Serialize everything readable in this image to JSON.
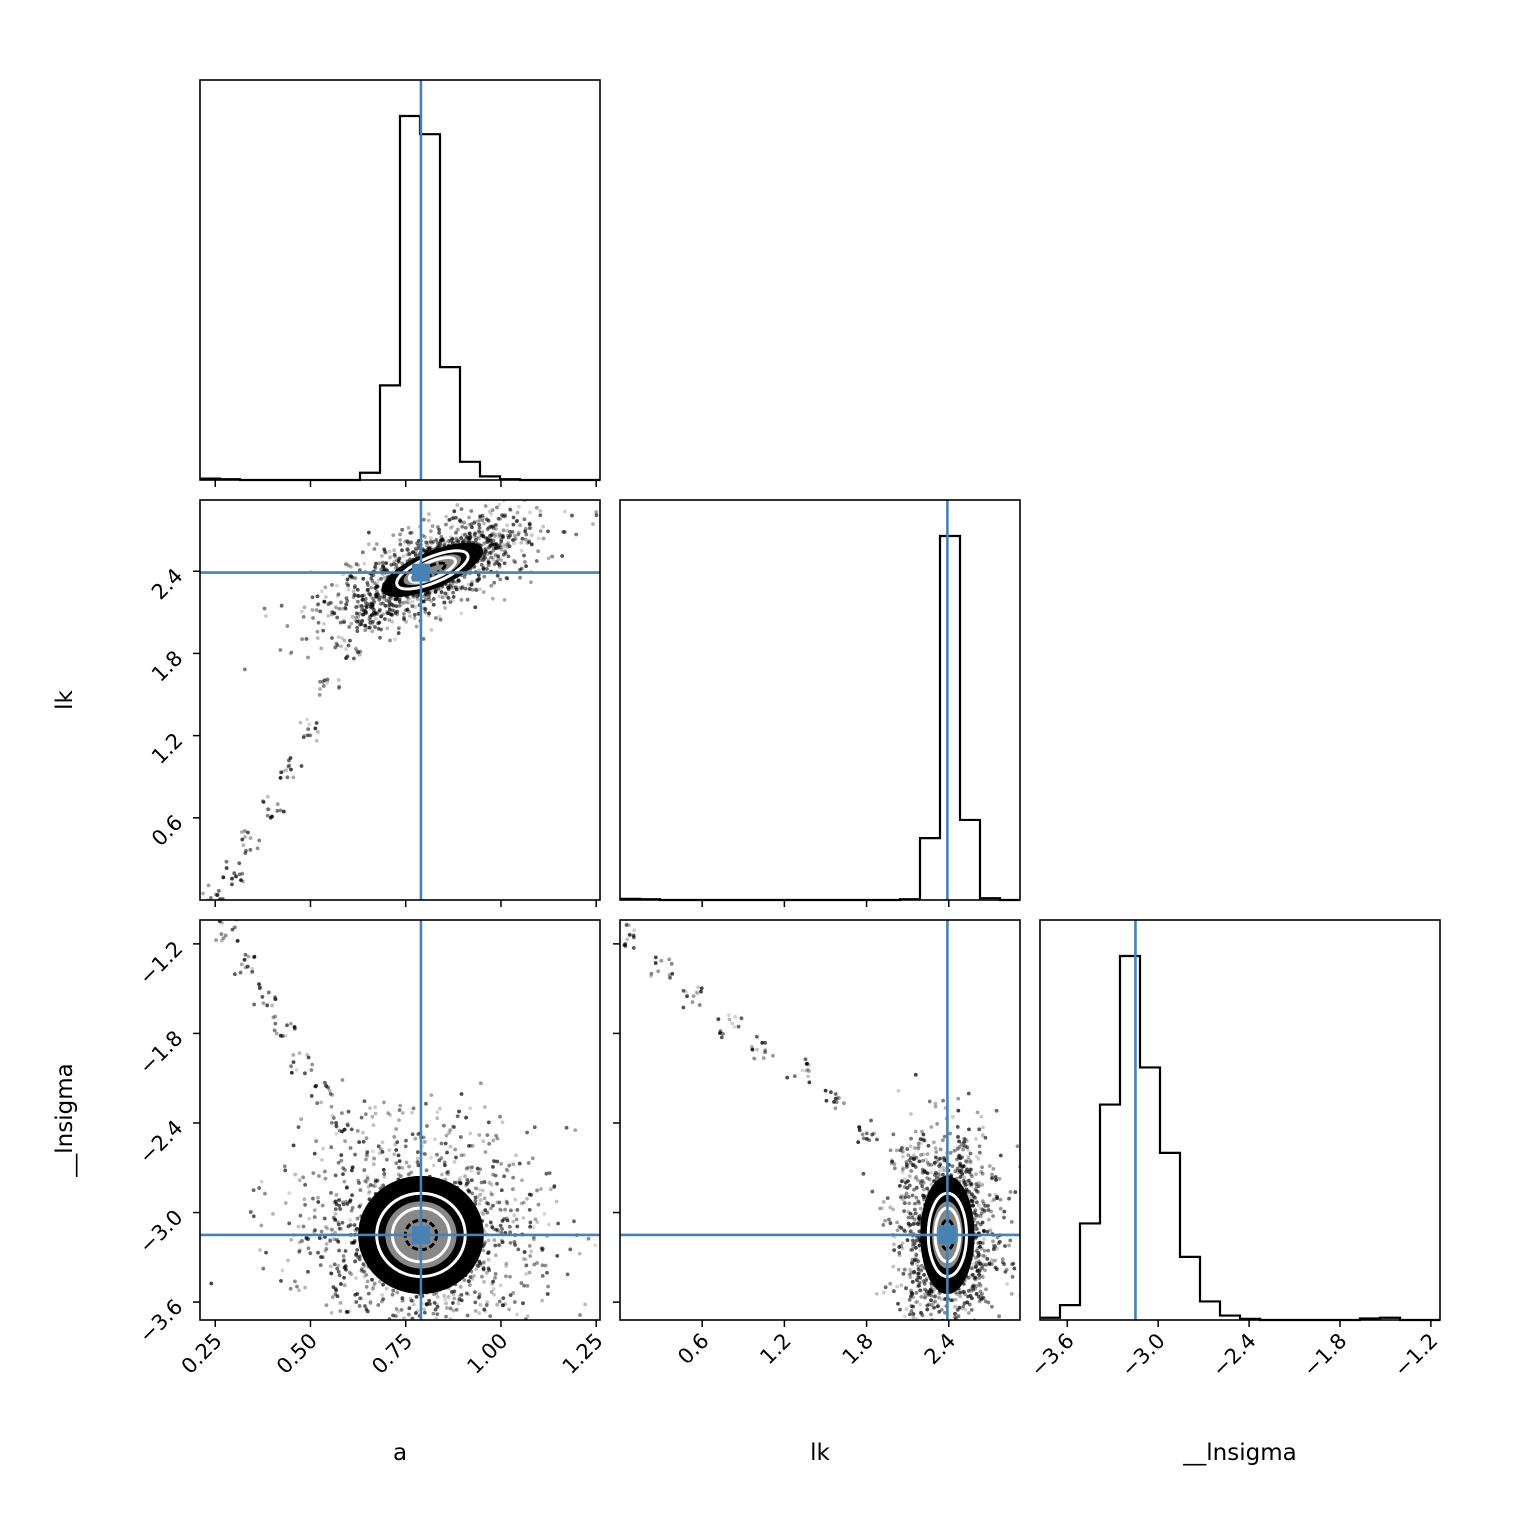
{
  "chart_data": {
    "type": "corner",
    "parameters": [
      "a",
      "lk",
      "__lnsigma"
    ],
    "axis_labels": [
      "a",
      "lk",
      "__lnsigma"
    ],
    "truths": {
      "a": 0.79,
      "lk": 2.39,
      "__lnsigma": -3.15
    },
    "colors": {
      "truth": "#4682b4",
      "hist": "#000000",
      "contour": "#ffffff",
      "points": "#000000"
    },
    "ranges": {
      "a": [
        0.21,
        1.26
      ],
      "lk": [
        0.0,
        2.92
      ],
      "__lnsigma": [
        -3.72,
        -1.04
      ],
      "__lnsigma_hist": [
        -3.78,
        -1.14
      ]
    },
    "ticks": {
      "a": [
        "0.25",
        "0.50",
        "0.75",
        "1.00",
        "1.25"
      ],
      "lk": [
        "0.6",
        "1.2",
        "1.8",
        "2.4"
      ],
      "__lnsigma": [
        "−3.6",
        "−3.0",
        "−2.4",
        "−1.8",
        "−1.2"
      ]
    },
    "histograms": {
      "a": {
        "edges": [
          0.21,
          0.2625,
          0.315,
          0.3675,
          0.42,
          0.4725,
          0.525,
          0.5775,
          0.63,
          0.6825,
          0.735,
          0.7875,
          0.84,
          0.8925,
          0.945,
          0.9975,
          1.05,
          1.1025,
          1.155,
          1.2075,
          1.26
        ],
        "counts": [
          0.004,
          0.002,
          0,
          0,
          0,
          0,
          0,
          0,
          0.02,
          0.26,
          1.0,
          0.95,
          0.31,
          0.05,
          0.01,
          0.002,
          0,
          0,
          0,
          0
        ]
      },
      "lk": {
        "edges": [
          0.0,
          0.146,
          0.292,
          0.438,
          0.584,
          0.73,
          0.876,
          1.022,
          1.168,
          1.314,
          1.46,
          1.606,
          1.752,
          1.898,
          2.044,
          2.19,
          2.336,
          2.482,
          2.628,
          2.774,
          2.92
        ],
        "counts": [
          0.003,
          0.002,
          0,
          0,
          0,
          0,
          0,
          0,
          0,
          0,
          0,
          0,
          0,
          0,
          0.002,
          0.17,
          1.0,
          0.22,
          0.005,
          0
        ]
      },
      "__lnsigma": {
        "edges": [
          -3.78,
          -3.648,
          -3.516,
          -3.384,
          -3.252,
          -3.12,
          -2.988,
          -2.856,
          -2.724,
          -2.592,
          -2.46,
          -2.328,
          -2.196,
          -2.064,
          -1.932,
          -1.8,
          -1.668,
          -1.536,
          -1.404,
          -1.272,
          -1.14
        ],
        "counts": [
          0.006,
          0.04,
          0.26,
          0.58,
          0.98,
          0.68,
          0.45,
          0.17,
          0.05,
          0.012,
          0.003,
          0,
          0,
          0,
          0,
          0,
          0.004,
          0.006,
          0,
          0
        ]
      }
    },
    "pairs": [
      {
        "x": "a",
        "y": "lk",
        "core": {
          "x": 0.82,
          "y": 2.41,
          "sx": 0.065,
          "sy": 0.11,
          "corr": 0.7
        },
        "tail": {
          "x": [
            0.24,
            0.3,
            0.35,
            0.4,
            0.45,
            0.5,
            0.55,
            0.6,
            0.65
          ],
          "y": [
            0.02,
            0.2,
            0.42,
            0.68,
            0.95,
            1.25,
            1.55,
            1.85,
            2.05
          ]
        }
      },
      {
        "x": "a",
        "y": "__lnsigma",
        "core": {
          "x": 0.79,
          "y": -3.15,
          "sx": 0.075,
          "sy": 0.18,
          "corr": 0.0
        },
        "tail": {
          "x": [
            0.28,
            0.33,
            0.38,
            0.43,
            0.48,
            0.53,
            0.58
          ],
          "y": [
            -1.1,
            -1.35,
            -1.55,
            -1.75,
            -2.0,
            -2.2,
            -2.4
          ]
        }
      },
      {
        "x": "lk",
        "y": "__lnsigma",
        "core": {
          "x": 2.39,
          "y": -3.15,
          "sx": 0.09,
          "sy": 0.18,
          "corr": 0.0
        },
        "tail": {
          "x": [
            0.05,
            0.3,
            0.55,
            0.8,
            1.05,
            1.3,
            1.55,
            1.8,
            2.05
          ],
          "y": [
            -1.15,
            -1.35,
            -1.55,
            -1.75,
            -1.9,
            -2.05,
            -2.25,
            -2.45,
            -2.65
          ]
        }
      }
    ]
  }
}
